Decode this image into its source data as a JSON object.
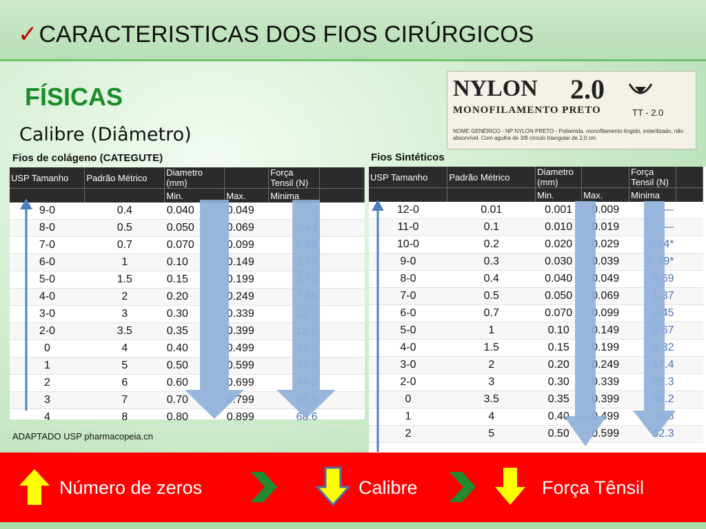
{
  "slide": {
    "title": "CARACTERISTICAS DOS FIOS CIRÚRGICOS",
    "check_mark": "✓",
    "subtitle": "FÍSICAS",
    "section": "Calibre (Diâmetro)"
  },
  "nylon_label": {
    "brand": "NYLON",
    "size": "2.0",
    "type": "MONOFILAMENTO PRETO",
    "needle_code": "TT - 2.0",
    "fine_print": "NOME GENÉRICO - NP NYLON PRETO - Poliamida, monofilamento tingido, esterilizado, não absorvível. Com agulha de 3/8 círculo triangular de 2,0 cm"
  },
  "collagen_table": {
    "title": "Fios de colágeno (CATEGUTE)",
    "headers": [
      "USP Tamanho",
      "Padrão Métrico",
      "Diametro (mm)",
      "",
      "Força Tensil (N)",
      ""
    ],
    "subheaders": [
      "",
      "",
      "Min.",
      "Max.",
      "Minima",
      ""
    ],
    "rows": [
      [
        "9-0",
        "0.4",
        "0.040",
        "0.049",
        "—"
      ],
      [
        "8-0",
        "0.5",
        "0.050",
        "0.069",
        "0.44"
      ],
      [
        "7-0",
        "0.7",
        "0.070",
        "0.099",
        "0.69"
      ],
      [
        "6-0",
        "1",
        "0.10",
        "0.149",
        "1.76"
      ],
      [
        "5-0",
        "1.5",
        "0.15",
        "0.199",
        "3.73"
      ],
      [
        "4-0",
        "2",
        "0.20",
        "0.249",
        "7.55"
      ],
      [
        "3-0",
        "3",
        "0.30",
        "0.339",
        "12.2"
      ],
      [
        "2-0",
        "3.5",
        "0.35",
        "0.399",
        "19.6"
      ],
      [
        "0",
        "4",
        "0.40",
        "0.499",
        "27.2"
      ],
      [
        "1",
        "5",
        "0.50",
        "0.599",
        "37.3"
      ],
      [
        "2",
        "6",
        "0.60",
        "0.699",
        "44.2"
      ],
      [
        "3",
        "7",
        "0.70",
        "0.799",
        "57.8"
      ],
      [
        "4",
        "8",
        "0.80",
        "0.899",
        "68.6"
      ]
    ]
  },
  "synthetic_table": {
    "title": "Fios Sintéticos",
    "headers": [
      "USP Tamanho",
      "Padrão Métrico",
      "Diametro (mm)",
      "",
      "Força Tensil (N)",
      ""
    ],
    "subheaders": [
      "",
      "",
      "Min.",
      "Max.",
      "Minima",
      ""
    ],
    "rows": [
      [
        "12-0",
        "0.01",
        "0.001",
        "0.009",
        "—"
      ],
      [
        "11-0",
        "0.1",
        "0.010",
        "0.019",
        "—"
      ],
      [
        "10-0",
        "0.2",
        "0.020",
        "0.029",
        "0.24*"
      ],
      [
        "9-0",
        "0.3",
        "0.030",
        "0.039",
        "0.49*"
      ],
      [
        "8-0",
        "0.4",
        "0.040",
        "0.049",
        "0.69"
      ],
      [
        "7-0",
        "0.5",
        "0.050",
        "0.069",
        "1.37"
      ],
      [
        "6-0",
        "0.7",
        "0.070",
        "0.099",
        "2.45"
      ],
      [
        "5-0",
        "1",
        "0.10",
        "0.149",
        "6.67"
      ],
      [
        "4-0",
        "1.5",
        "0.15",
        "0.199",
        "9.32"
      ],
      [
        "3-0",
        "2",
        "0.20",
        "0.249",
        "17.4"
      ],
      [
        "2-0",
        "3",
        "0.30",
        "0.339",
        "26.3"
      ],
      [
        "0",
        "3.5",
        "0.35",
        "0.399",
        "38.2"
      ],
      [
        "1",
        "4",
        "0.40",
        "0.499",
        "49.8"
      ],
      [
        "2",
        "5",
        "0.50",
        "0.599",
        "62.3"
      ]
    ]
  },
  "source": "ADAPTADO USP pharmacopeia.cn",
  "legend": {
    "zeros_label": "Número de zeros",
    "calibre_label": "Calibre",
    "tensile_label": "Força Tênsil"
  },
  "colors": {
    "title_green": "#1a8c2a",
    "arrow_blue": "#8fb0d9",
    "line_blue": "#4f7ec0",
    "red_bar": "#ff0000",
    "yellow": "#ffff00",
    "chevron_green": "#1f8a2e"
  }
}
